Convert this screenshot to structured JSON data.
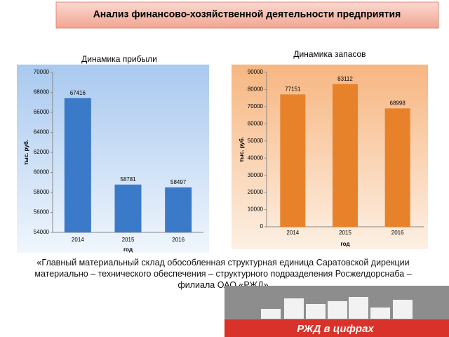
{
  "header": {
    "title": "Анализ финансово-хозяйственной деятельности предприятия"
  },
  "chart_data": [
    {
      "type": "bar",
      "title": "Динамика прибыли",
      "categories": [
        "2014",
        "2015",
        "2016"
      ],
      "values": [
        67416,
        58781,
        58497
      ],
      "color": "#3b79c9",
      "ylim": [
        54000,
        70000
      ],
      "yticks": [
        54000,
        56000,
        58000,
        60000,
        62000,
        64000,
        66000,
        68000,
        70000
      ],
      "ylabel": "тыс. руб.",
      "xlabel": "год"
    },
    {
      "type": "bar",
      "title": "Динамика запасов",
      "categories": [
        "2014",
        "2015",
        "2016"
      ],
      "values": [
        77151,
        83112,
        68998
      ],
      "color": "#e8822a",
      "ylim": [
        0,
        90000
      ],
      "yticks": [
        0,
        10000,
        20000,
        30000,
        40000,
        50000,
        60000,
        70000,
        80000,
        90000
      ],
      "ylabel": "тыс. руб.",
      "xlabel": "год"
    }
  ],
  "caption": "«Главный материальный склад обособленная структурная единица Саратовской дирекции материально – технического обеспечения – структурного подразделения Росжелдорснаба – филиала ОАО «РЖД»",
  "image": {
    "label": "РЖД в цифрах"
  }
}
